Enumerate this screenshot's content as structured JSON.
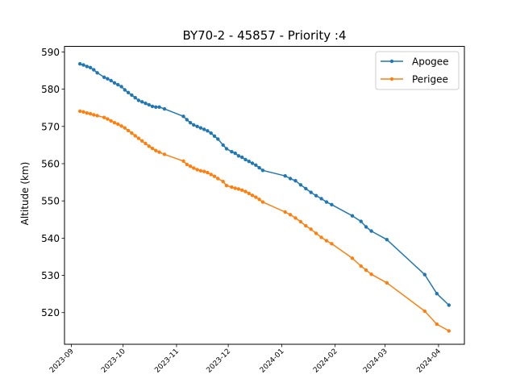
{
  "chart_data": {
    "type": "line",
    "title": "BY70-2 - 45857 - Priority :4",
    "xlabel": "",
    "ylabel": "Altitude (km)",
    "xlim": [
      "2023-08-28",
      "2024-04-16"
    ],
    "ylim": [
      511.5,
      591.5
    ],
    "yticks": [
      520,
      530,
      540,
      550,
      560,
      570,
      580,
      590
    ],
    "xticks": [
      "2023-09-01",
      "2023-10-01",
      "2023-11-01",
      "2023-12-01",
      "2024-01-01",
      "2024-02-01",
      "2024-03-01",
      "2024-04-01"
    ],
    "xtick_labels": [
      "2023-09",
      "2023-10",
      "2023-11",
      "2023-12",
      "2024-01",
      "2024-02",
      "2024-03",
      "2024-04"
    ],
    "legend": "top-right",
    "grid": false,
    "series": [
      {
        "name": "Apogee",
        "color": "#1f77b4",
        "x": [
          "2023-09-06",
          "2023-09-08",
          "2023-09-10",
          "2023-09-12",
          "2023-09-14",
          "2023-09-16",
          "2023-09-20",
          "2023-09-22",
          "2023-09-24",
          "2023-09-26",
          "2023-09-28",
          "2023-09-30",
          "2023-10-02",
          "2023-10-04",
          "2023-10-06",
          "2023-10-08",
          "2023-10-10",
          "2023-10-12",
          "2023-10-14",
          "2023-10-16",
          "2023-10-18",
          "2023-10-20",
          "2023-10-22",
          "2023-10-25",
          "2023-11-05",
          "2023-11-07",
          "2023-11-09",
          "2023-11-11",
          "2023-11-13",
          "2023-11-15",
          "2023-11-17",
          "2023-11-19",
          "2023-11-21",
          "2023-11-23",
          "2023-11-25",
          "2023-11-28",
          "2023-11-30",
          "2023-12-03",
          "2023-12-05",
          "2023-12-07",
          "2023-12-09",
          "2023-12-11",
          "2023-12-13",
          "2023-12-15",
          "2023-12-17",
          "2023-12-19",
          "2023-12-21",
          "2024-01-03",
          "2024-01-06",
          "2024-01-09",
          "2024-01-12",
          "2024-01-15",
          "2024-01-18",
          "2024-01-21",
          "2024-01-24",
          "2024-01-27",
          "2024-01-30",
          "2024-02-11",
          "2024-02-16",
          "2024-02-19",
          "2024-02-22",
          "2024-03-02",
          "2024-03-24",
          "2024-03-31",
          "2024-04-07"
        ],
        "values": [
          586.8,
          586.5,
          586.1,
          585.8,
          585.2,
          584.4,
          583.2,
          582.8,
          582.3,
          581.7,
          581.2,
          580.7,
          579.8,
          579.1,
          578.4,
          577.7,
          577.0,
          576.6,
          576.2,
          575.8,
          575.4,
          575.2,
          575.2,
          574.7,
          572.7,
          571.8,
          571.0,
          570.4,
          570.0,
          569.6,
          569.2,
          568.8,
          568.2,
          567.4,
          566.6,
          565.0,
          564.0,
          563.2,
          562.8,
          562.1,
          561.7,
          561.1,
          560.6,
          560.1,
          559.6,
          558.9,
          558.2,
          556.7,
          556.0,
          555.4,
          554.3,
          553.3,
          552.3,
          551.4,
          550.6,
          549.7,
          549.0,
          546.0,
          544.5,
          543.0,
          541.9,
          539.6,
          530.2,
          525.1,
          522.0
        ]
      },
      {
        "name": "Perigee",
        "color": "#ff7f0e",
        "x": [
          "2023-09-06",
          "2023-09-08",
          "2023-09-10",
          "2023-09-12",
          "2023-09-14",
          "2023-09-16",
          "2023-09-20",
          "2023-09-22",
          "2023-09-24",
          "2023-09-26",
          "2023-09-28",
          "2023-09-30",
          "2023-10-02",
          "2023-10-04",
          "2023-10-06",
          "2023-10-08",
          "2023-10-10",
          "2023-10-12",
          "2023-10-14",
          "2023-10-16",
          "2023-10-18",
          "2023-10-20",
          "2023-10-22",
          "2023-10-25",
          "2023-11-05",
          "2023-11-07",
          "2023-11-09",
          "2023-11-11",
          "2023-11-13",
          "2023-11-15",
          "2023-11-17",
          "2023-11-19",
          "2023-11-21",
          "2023-11-23",
          "2023-11-25",
          "2023-11-28",
          "2023-11-30",
          "2023-12-03",
          "2023-12-05",
          "2023-12-07",
          "2023-12-09",
          "2023-12-11",
          "2023-12-13",
          "2023-12-15",
          "2023-12-17",
          "2023-12-19",
          "2023-12-21",
          "2024-01-03",
          "2024-01-06",
          "2024-01-09",
          "2024-01-12",
          "2024-01-15",
          "2024-01-18",
          "2024-01-21",
          "2024-01-24",
          "2024-01-27",
          "2024-01-30",
          "2024-02-11",
          "2024-02-16",
          "2024-02-19",
          "2024-02-22",
          "2024-03-02",
          "2024-03-24",
          "2024-03-31",
          "2024-04-07"
        ],
        "values": [
          574.1,
          573.9,
          573.6,
          573.4,
          573.1,
          572.9,
          572.4,
          572.0,
          571.5,
          571.0,
          570.6,
          570.1,
          569.6,
          568.9,
          568.2,
          567.5,
          566.8,
          566.1,
          565.4,
          564.7,
          564.1,
          563.5,
          563.1,
          562.5,
          560.7,
          559.8,
          559.3,
          558.8,
          558.4,
          558.1,
          557.9,
          557.6,
          557.1,
          556.6,
          556.0,
          555.2,
          554.1,
          553.7,
          553.4,
          553.2,
          552.9,
          552.5,
          552.0,
          551.5,
          551.0,
          550.4,
          549.7,
          547.0,
          546.3,
          545.4,
          544.4,
          543.3,
          542.4,
          541.3,
          540.2,
          539.3,
          538.5,
          534.6,
          532.5,
          531.4,
          530.3,
          528.0,
          520.4,
          516.9,
          515.1
        ]
      }
    ]
  }
}
